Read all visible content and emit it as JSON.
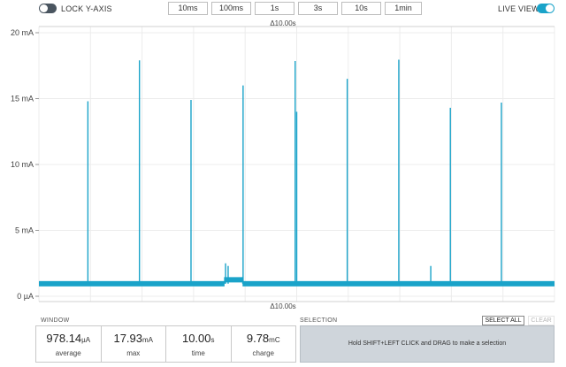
{
  "toolbar": {
    "lock_label": "LOCK Y-AXIS",
    "live_label": "LIVE VIEW",
    "lock_on": false,
    "live_on": true,
    "ranges": [
      "10ms",
      "100ms",
      "1s",
      "3s",
      "10s",
      "1min"
    ]
  },
  "chart": {
    "delta_top": "Δ10.00s",
    "delta_bottom": "Δ10.00s",
    "y_ticks": [
      {
        "value": 20,
        "label": "20 mA"
      },
      {
        "value": 15,
        "label": "15 mA"
      },
      {
        "value": 10,
        "label": "10 mA"
      },
      {
        "value": 5,
        "label": "5 mA"
      },
      {
        "value": 0,
        "label": "0 µA"
      }
    ],
    "colors": {
      "trace": "#1aa3c9",
      "grid": "#ececec"
    }
  },
  "chart_data": {
    "type": "line",
    "title": "",
    "xlabel": "",
    "ylabel": "",
    "x_unit": "s",
    "y_unit": "mA",
    "xlim": [
      0,
      10
    ],
    "ylim": [
      0,
      20
    ],
    "grid": true,
    "baseline_mA": 0.95,
    "segments": [
      {
        "x_start": 3.6,
        "x_end": 3.95,
        "level_mA": 1.25
      }
    ],
    "spikes": [
      {
        "x": 0.95,
        "y": 14.8
      },
      {
        "x": 1.95,
        "y": 17.9
      },
      {
        "x": 2.95,
        "y": 14.9
      },
      {
        "x": 3.62,
        "y": 2.5
      },
      {
        "x": 3.67,
        "y": 2.3
      },
      {
        "x": 3.96,
        "y": 16.0
      },
      {
        "x": 4.97,
        "y": 17.85
      },
      {
        "x": 5.0,
        "y": 14.0
      },
      {
        "x": 5.98,
        "y": 16.5
      },
      {
        "x": 6.98,
        "y": 17.95
      },
      {
        "x": 7.6,
        "y": 2.3
      },
      {
        "x": 7.98,
        "y": 14.3
      },
      {
        "x": 8.97,
        "y": 14.7
      }
    ]
  },
  "window": {
    "label": "WINDOW",
    "stats": [
      {
        "value": "978.14",
        "unit": "µA",
        "name": "average"
      },
      {
        "value": "17.93",
        "unit": "mA",
        "name": "max"
      },
      {
        "value": "10.00",
        "unit": "s",
        "name": "time"
      },
      {
        "value": "9.78",
        "unit": "mC",
        "name": "charge"
      }
    ]
  },
  "selection": {
    "label": "SELECTION",
    "select_all": "SELECT ALL",
    "clear": "CLEAR",
    "hint": "Hold SHIFT+LEFT CLICK and DRAG to make a selection"
  }
}
